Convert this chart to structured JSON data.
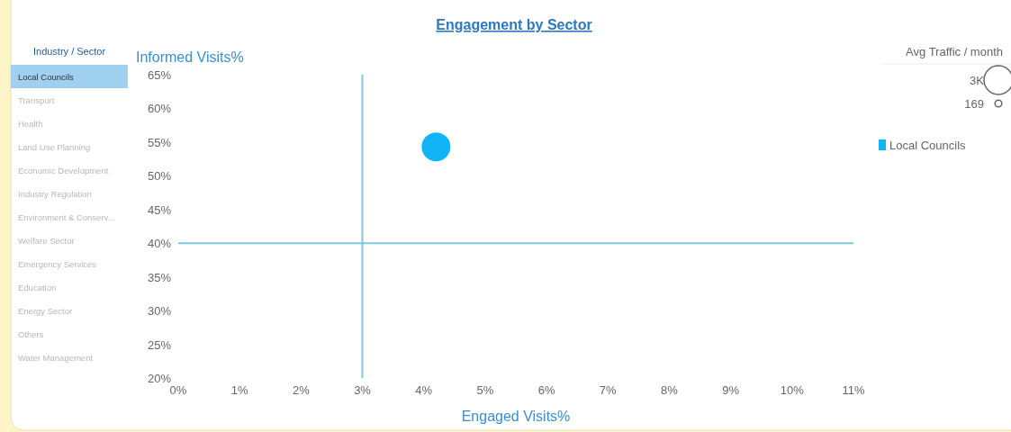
{
  "chart_data": {
    "type": "bubble",
    "title": "Engagement by Sector",
    "xlabel": "Engaged Visits%",
    "ylabel": "Informed Visits%",
    "legend_title": "Avg Traffic / month",
    "annotations": [
      "Industry / Sector",
      "Local Councils",
      "Transport",
      "Health",
      "Land Use Planning",
      "Economic Development",
      "Industry Regulation",
      "Environment & Conserv...",
      "Welfare Sector",
      "Emergency Services",
      "Education",
      "Energy Sector",
      "Others",
      "Water Management"
    ],
    "series": [
      {
        "name": "Local Councils",
        "color": "#12b4f8",
        "x": [
          4.2
        ],
        "values": [
          54.3
        ],
        "sizes": [
          3000
        ]
      }
    ],
    "size_legend": [
      {
        "value": 3000,
        "label": "3K"
      },
      {
        "value": 169,
        "label": "169"
      }
    ],
    "xlim": [
      0,
      11
    ],
    "xticks": [
      {
        "value": 0,
        "label": "0%"
      },
      {
        "value": 1,
        "label": "1%"
      },
      {
        "value": 2,
        "label": "2%"
      },
      {
        "value": 3,
        "label": "3%"
      },
      {
        "value": 4,
        "label": "4%"
      },
      {
        "value": 5,
        "label": "5%"
      },
      {
        "value": 6,
        "label": "6%"
      },
      {
        "value": 7,
        "label": "7%"
      },
      {
        "value": 8,
        "label": "8%"
      },
      {
        "value": 9,
        "label": "9%"
      },
      {
        "value": 10,
        "label": "10%"
      },
      {
        "value": 11,
        "label": "11%"
      }
    ],
    "ylim": [
      20,
      65
    ],
    "yticks": [
      {
        "value": 20,
        "label": "20%"
      },
      {
        "value": 25,
        "label": "25%"
      },
      {
        "value": 30,
        "label": "30%"
      },
      {
        "value": 35,
        "label": "35%"
      },
      {
        "value": 40,
        "label": "40%"
      },
      {
        "value": 45,
        "label": "45%"
      },
      {
        "value": 50,
        "label": "50%"
      },
      {
        "value": 55,
        "label": "55%"
      },
      {
        "value": 60,
        "label": "60%"
      },
      {
        "value": 65,
        "label": "65%"
      }
    ],
    "ref_lines": [
      {
        "axis": "x",
        "value": 3,
        "color": "#7ec8e0"
      },
      {
        "axis": "y",
        "value": 40,
        "color": "#7ec8e0"
      }
    ],
    "grid": false,
    "legend": "right"
  }
}
